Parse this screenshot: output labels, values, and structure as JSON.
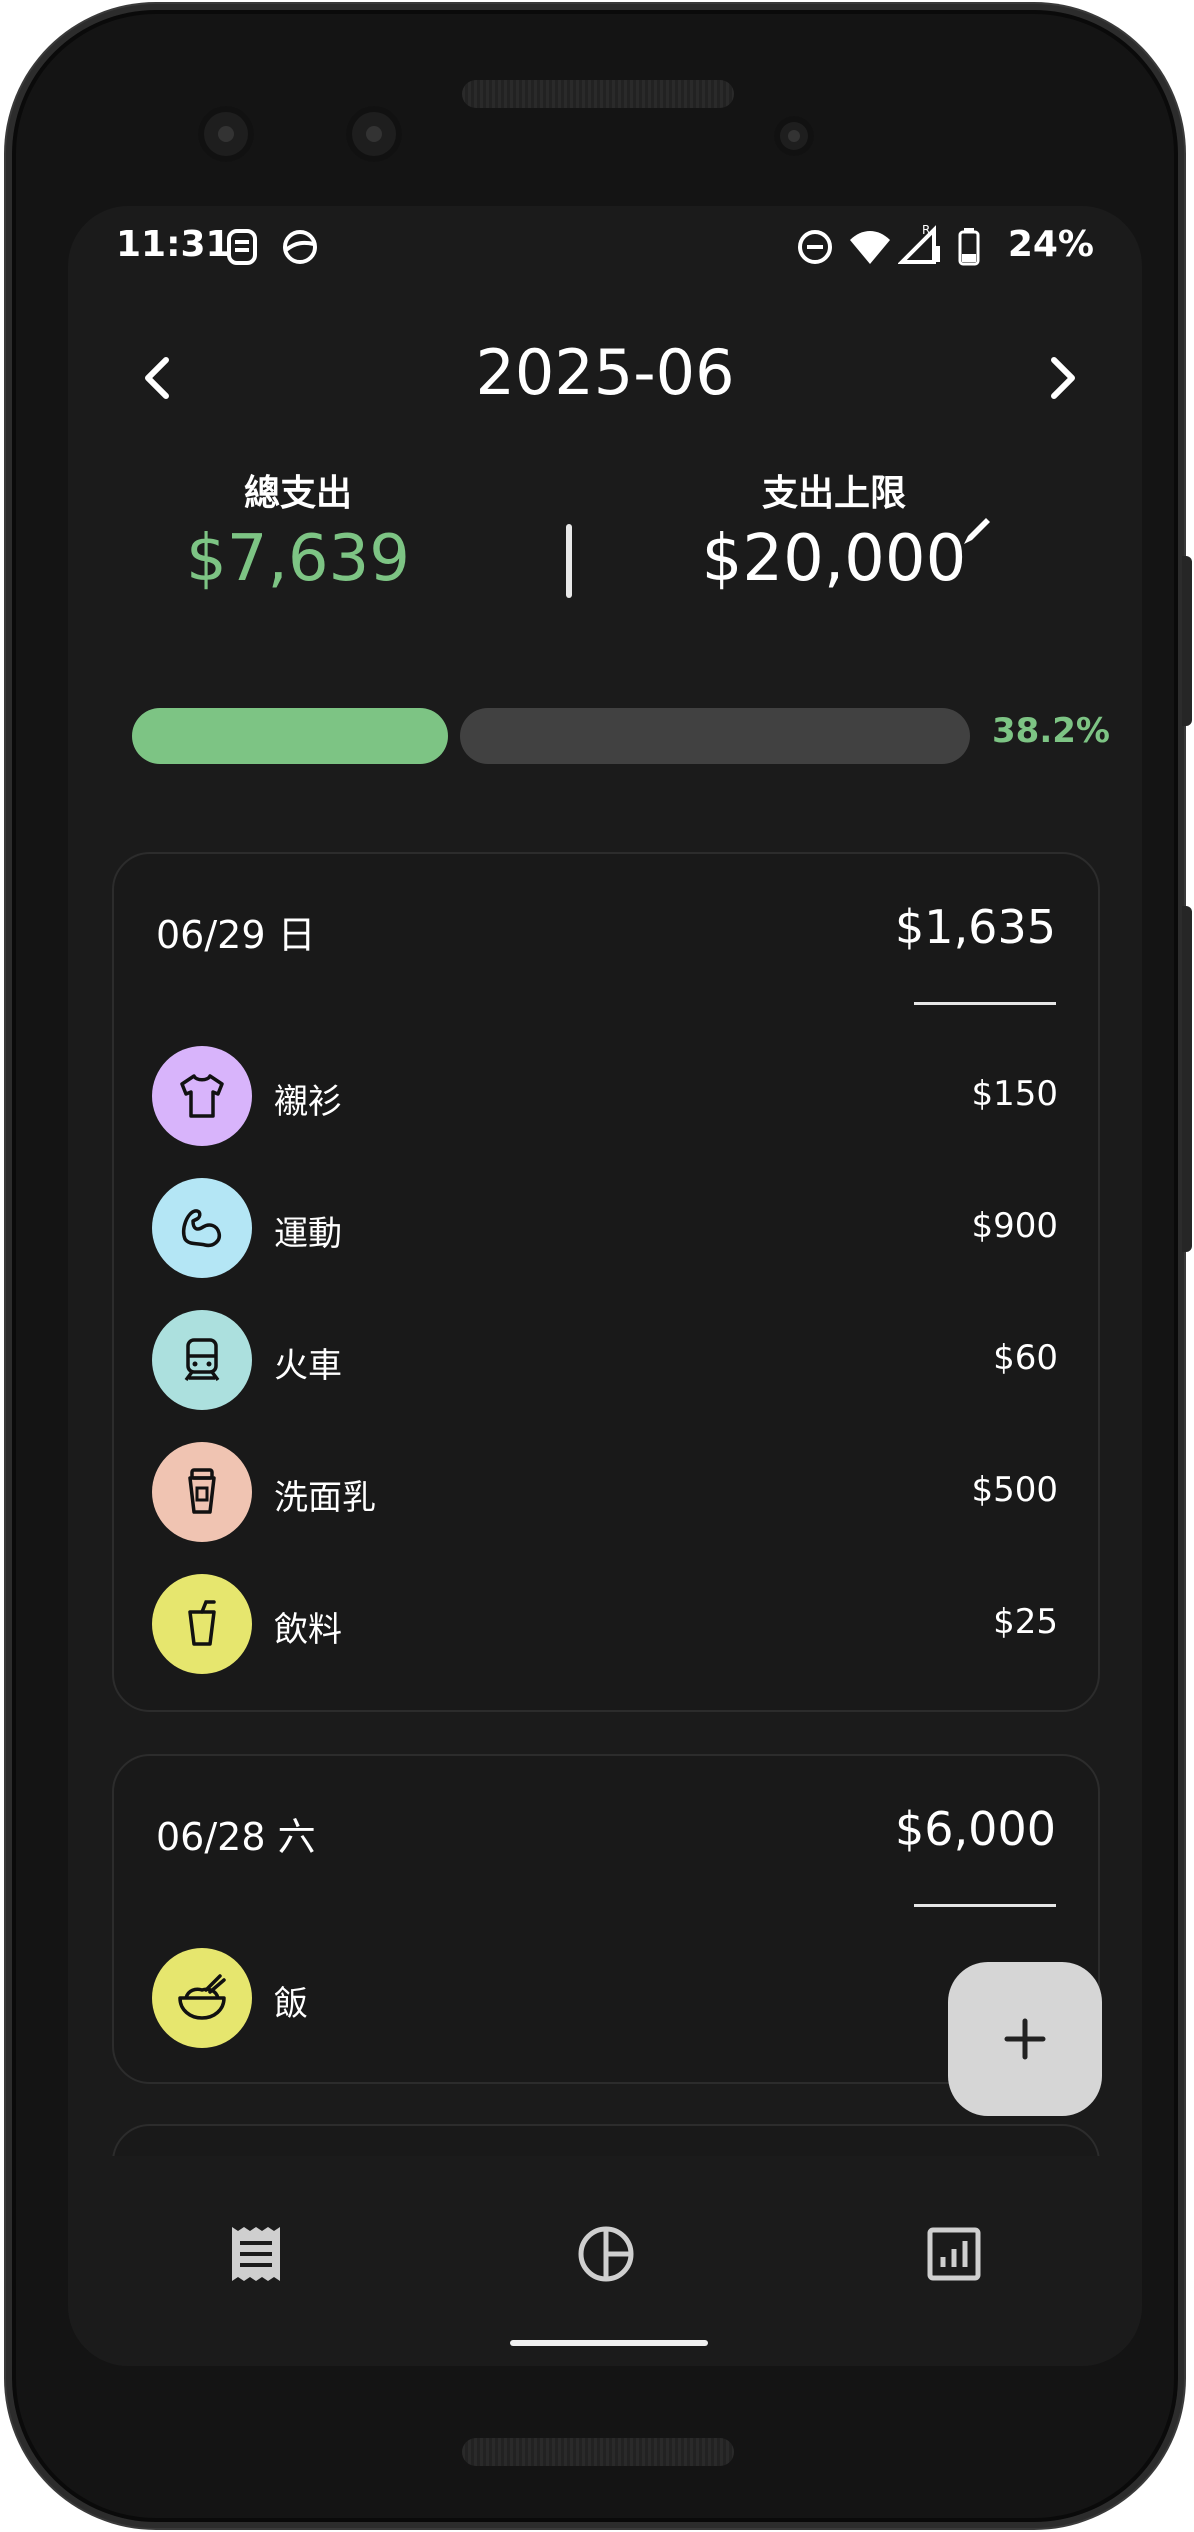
{
  "status_bar": {
    "time": "11:31",
    "battery": "24%",
    "icons": [
      "notification-icon",
      "vpn-icon",
      "dnd-icon",
      "wifi-icon",
      "signal-roaming-icon",
      "battery-icon"
    ]
  },
  "header": {
    "month": "2025-06",
    "prev_icon": "chevron-left-icon",
    "next_icon": "chevron-right-icon"
  },
  "summary": {
    "total_label": "總支出",
    "total_value": "$7,639",
    "limit_label": "支出上限",
    "limit_value": "$20,000",
    "edit_icon": "pencil-icon"
  },
  "progress": {
    "fraction": 0.382,
    "percent_text": "38.2%"
  },
  "days": [
    {
      "date": "06/29 日",
      "total": "$1,635",
      "items": [
        {
          "label": "襯衫",
          "amount": "$150",
          "icon": "shirt-icon",
          "color": "#d8b4fb"
        },
        {
          "label": "運動",
          "amount": "$900",
          "icon": "muscle-arm-icon",
          "color": "#b4e6f5"
        },
        {
          "label": "火車",
          "amount": "$60",
          "icon": "train-icon",
          "color": "#ace0de"
        },
        {
          "label": "洗面乳",
          "amount": "$500",
          "icon": "cleanser-tube-icon",
          "color": "#f0c4b2"
        },
        {
          "label": "飲料",
          "amount": "$25",
          "icon": "drink-cup-icon",
          "color": "#e6e66e"
        }
      ]
    },
    {
      "date": "06/28 六",
      "total": "$6,000",
      "items": [
        {
          "label": "飯",
          "amount": "",
          "icon": "rice-bowl-icon",
          "color": "#e6e66e"
        }
      ]
    }
  ],
  "fab": {
    "icon": "plus-icon"
  },
  "bottom_nav": [
    "receipt-list-icon",
    "pie-chart-icon",
    "bar-chart-icon"
  ],
  "colors": {
    "accent_green": "#7dc484",
    "background": "#1b1b1b",
    "card": "#191919",
    "track": "#414141"
  }
}
